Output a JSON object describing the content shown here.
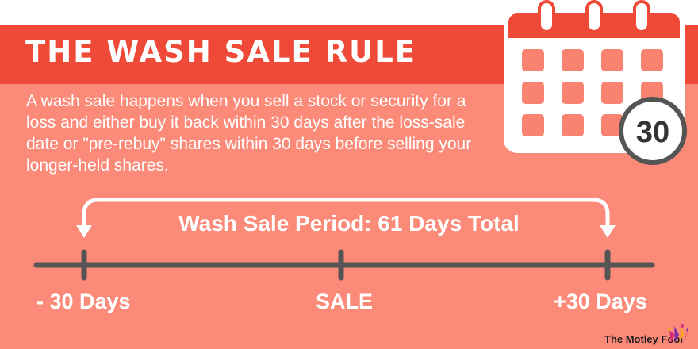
{
  "title": "THE WASH SALE RULE",
  "description": "A wash sale happens when you sell a stock or security for a loss and either buy it back within 30 days after the loss-sale date or \"pre-rebuy\" shares within 30 days before selling your longer-held shares.",
  "calendar": {
    "badge": "30",
    "icon": "calendar-icon"
  },
  "timeline": {
    "period_label": "Wash Sale Period: 61 Days Total",
    "ticks": [
      "- 30 Days",
      "SALE",
      "+30 Days"
    ]
  },
  "brand": {
    "name": "The Motley Fool",
    "icon": "jester-hat-icon"
  },
  "colors": {
    "background": "#fb8a79",
    "title_bar": "#ef4937",
    "timeline": "#555555",
    "calendar_cell": "#fa8270",
    "text": "#ffffff"
  }
}
